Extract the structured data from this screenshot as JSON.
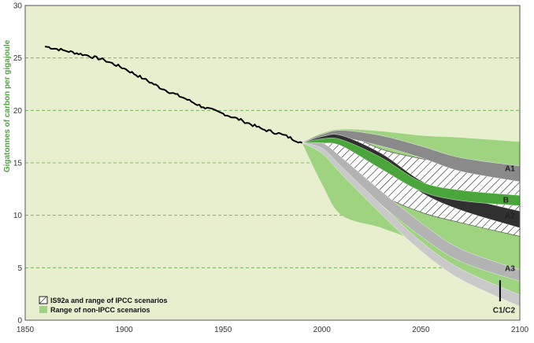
{
  "chart_data": {
    "type": "line",
    "xlim": [
      1850,
      2100
    ],
    "ylim": [
      0,
      30
    ],
    "ylabel": "Gigatonnes of carbon per gigajoule",
    "xticks": [
      "1850",
      "1900",
      "1950",
      "2000",
      "2050",
      "2100"
    ],
    "yticks": [
      "0",
      "5",
      "10",
      "15",
      "20",
      "25",
      "30"
    ],
    "grid": "horizontal dashed",
    "colors": {
      "plot_bg": "#e7efcf",
      "historical": "#000000",
      "non_ipcc": "#9ed37f",
      "hatch": "#222222",
      "b_band": "#4aa63a",
      "axis_label": "#4aa63a"
    },
    "historical": [
      [
        1860,
        26.1
      ],
      [
        1870,
        25.7
      ],
      [
        1880,
        25.3
      ],
      [
        1890,
        24.8
      ],
      [
        1900,
        24.0
      ],
      [
        1910,
        23.0
      ],
      [
        1920,
        22.0
      ],
      [
        1930,
        21.2
      ],
      [
        1940,
        20.3
      ],
      [
        1950,
        19.7
      ],
      [
        1960,
        19.0
      ],
      [
        1970,
        18.2
      ],
      [
        1980,
        17.7
      ],
      [
        1990,
        16.9
      ]
    ],
    "ranges": [
      {
        "name": "Range of non-IPCC scenarios",
        "upper": [
          [
            1990,
            16.9
          ],
          [
            2000,
            17.8
          ],
          [
            2010,
            18.2
          ],
          [
            2030,
            18.0
          ],
          [
            2050,
            17.6
          ],
          [
            2070,
            17.4
          ],
          [
            2100,
            17.0
          ]
        ],
        "lower": [
          [
            1990,
            16.9
          ],
          [
            2000,
            13.0
          ],
          [
            2010,
            10.0
          ],
          [
            2030,
            8.8
          ],
          [
            2050,
            7.3
          ],
          [
            2070,
            4.8
          ],
          [
            2100,
            2.0
          ]
        ]
      },
      {
        "name": "IS92a and range of IPCC scenarios",
        "upper": [
          [
            1990,
            16.9
          ],
          [
            2000,
            17.7
          ],
          [
            2010,
            17.9
          ],
          [
            2030,
            16.3
          ],
          [
            2050,
            15.4
          ],
          [
            2070,
            14.8
          ],
          [
            2100,
            13.5
          ]
        ],
        "lower": [
          [
            1990,
            16.9
          ],
          [
            2000,
            16.4
          ],
          [
            2010,
            15.0
          ],
          [
            2030,
            12.0
          ],
          [
            2050,
            10.3
          ],
          [
            2070,
            9.3
          ],
          [
            2100,
            8.0
          ]
        ]
      }
    ],
    "series": [
      {
        "name": "A1",
        "upper": [
          [
            1990,
            16.9
          ],
          [
            2000,
            17.7
          ],
          [
            2010,
            18.1
          ],
          [
            2030,
            17.6
          ],
          [
            2050,
            16.6
          ],
          [
            2070,
            15.5
          ],
          [
            2100,
            14.7
          ]
        ],
        "lower": [
          [
            1990,
            16.9
          ],
          [
            2000,
            17.1
          ],
          [
            2010,
            17.4
          ],
          [
            2030,
            16.6
          ],
          [
            2050,
            15.5
          ],
          [
            2070,
            14.2
          ],
          [
            2100,
            13.2
          ]
        ],
        "color": "#8a8a8a"
      },
      {
        "name": "B",
        "upper": [
          [
            1990,
            16.9
          ],
          [
            2000,
            17.3
          ],
          [
            2010,
            17.2
          ],
          [
            2030,
            15.5
          ],
          [
            2050,
            13.2
          ],
          [
            2070,
            12.4
          ],
          [
            2100,
            11.9
          ]
        ],
        "lower": [
          [
            1990,
            16.9
          ],
          [
            2000,
            16.9
          ],
          [
            2010,
            16.6
          ],
          [
            2030,
            14.4
          ],
          [
            2050,
            12.3
          ],
          [
            2070,
            11.4
          ],
          [
            2100,
            10.9
          ]
        ],
        "color": "#4aa63a"
      },
      {
        "name": "A2",
        "upper": [
          [
            1990,
            16.9
          ],
          [
            2000,
            17.5
          ],
          [
            2010,
            17.6
          ],
          [
            2030,
            15.9
          ],
          [
            2050,
            13.3
          ],
          [
            2070,
            11.8
          ],
          [
            2100,
            10.4
          ]
        ],
        "lower": [
          [
            1990,
            16.9
          ],
          [
            2000,
            17.1
          ],
          [
            2010,
            17.0
          ],
          [
            2030,
            15.0
          ],
          [
            2050,
            12.2
          ],
          [
            2070,
            10.5
          ],
          [
            2100,
            8.8
          ]
        ],
        "color": "#303030"
      },
      {
        "name": "A3",
        "upper": [
          [
            1990,
            16.9
          ],
          [
            2000,
            16.9
          ],
          [
            2010,
            15.5
          ],
          [
            2030,
            12.3
          ],
          [
            2050,
            9.3
          ],
          [
            2070,
            6.8
          ],
          [
            2100,
            4.8
          ]
        ],
        "lower": [
          [
            1990,
            16.9
          ],
          [
            2000,
            16.2
          ],
          [
            2010,
            14.5
          ],
          [
            2030,
            11.0
          ],
          [
            2050,
            8.0
          ],
          [
            2070,
            5.6
          ],
          [
            2100,
            3.7
          ]
        ],
        "color": "#b3b3b3"
      },
      {
        "name": "C1/C2",
        "upper": [
          [
            1990,
            16.9
          ],
          [
            2000,
            16.4
          ],
          [
            2010,
            14.6
          ],
          [
            2030,
            11.0
          ],
          [
            2050,
            7.5
          ],
          [
            2070,
            4.9
          ],
          [
            2100,
            2.4
          ]
        ],
        "lower": [
          [
            1990,
            16.9
          ],
          [
            2000,
            15.9
          ],
          [
            2010,
            13.9
          ],
          [
            2030,
            10.1
          ],
          [
            2050,
            6.6
          ],
          [
            2070,
            3.9
          ],
          [
            2100,
            1.3
          ]
        ],
        "color": "#c9c9c9"
      }
    ],
    "legend": [
      {
        "label": "IS92a and range of IPCC scenarios",
        "swatch": "hatch"
      },
      {
        "label": "Range of non-IPCC scenarios",
        "swatch": "non_ipcc"
      }
    ],
    "legend_position": "bottom-left",
    "series_labels": [
      {
        "text": "A1",
        "x": 2095,
        "y": 14.5
      },
      {
        "text": "B",
        "x": 2093,
        "y": 11.5
      },
      {
        "text": "A2",
        "x": 2095,
        "y": 10.0
      },
      {
        "text": "A3",
        "x": 2095,
        "y": 5.0
      },
      {
        "text": "C1/C2",
        "x": 2092,
        "y": 1.0
      }
    ]
  }
}
